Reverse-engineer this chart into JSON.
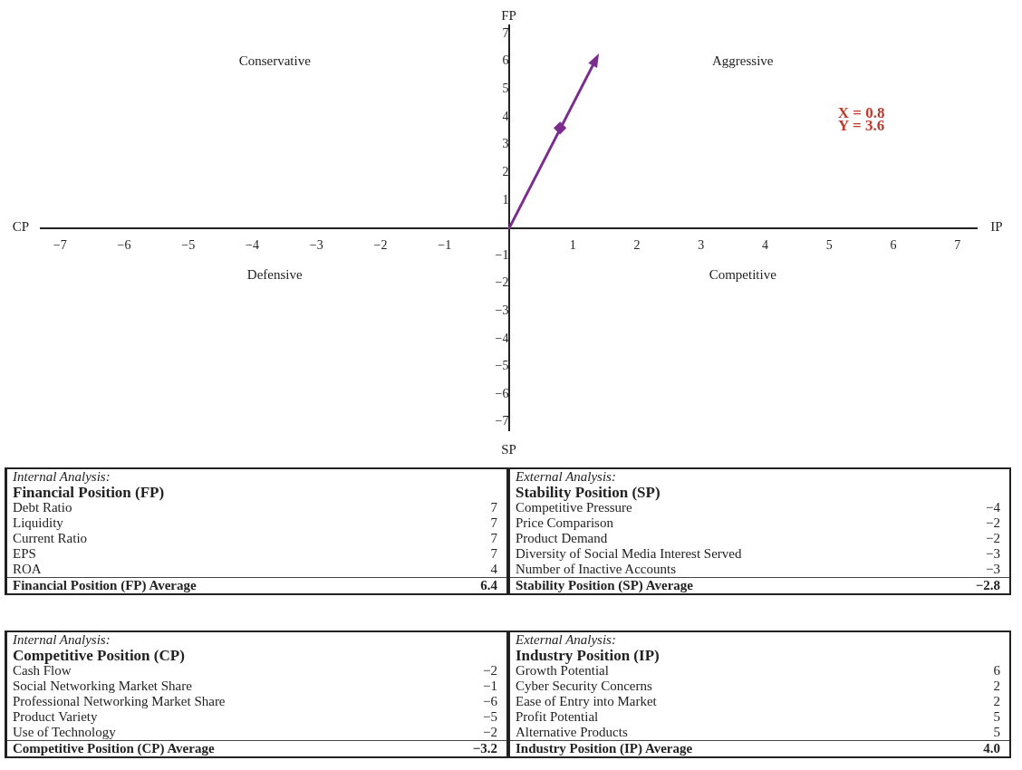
{
  "chart_data": [
    {
      "type": "scatter",
      "xlabel": "IP",
      "ylabel": "FP",
      "series": [
        {
          "color": "#7b2d8e",
          "x": [
            0.8
          ],
          "values": [
            3.6
          ],
          "marker": "diamond"
        }
      ],
      "xlim": [
        -7.3,
        7.3
      ],
      "xticks": [
        -7,
        -6,
        -5,
        -4,
        -3,
        -2,
        -1,
        1,
        2,
        3,
        4,
        5,
        6,
        7
      ],
      "ylim": [
        -7.3,
        7.3
      ],
      "yticks": [
        -7,
        -6,
        -5,
        -4,
        -3,
        -2,
        -1,
        1,
        2,
        3,
        4,
        5,
        6,
        7
      ],
      "grid": false,
      "legend": false,
      "annotations": [
        "Conservative",
        "Aggressive",
        "Defensive",
        "Competitive",
        "CP",
        "SP",
        "X = 0.8\nY = 3.6"
      ]
    },
    {
      "type": "other",
      "title": "Internal Analysis:",
      "subtitle": "Financial Position (FP)",
      "data_labels": true,
      "categories": [
        "Debt Ratio",
        "Liquidity",
        "Current Ratio",
        "EPS",
        "ROA",
        "Financial Position (FP) Average"
      ],
      "values": [
        7,
        7,
        7,
        7,
        4,
        6.4
      ]
    },
    {
      "type": "other",
      "title": "External Analysis:",
      "subtitle": "Stability Position (SP)",
      "data_labels": true,
      "categories": [
        "Competitive Pressure",
        "Price Comparison",
        "Product Demand",
        "Diversity of Social Media Interest Served",
        "Number of Inactive Accounts",
        "Stability Position (SP) Average"
      ],
      "values": [
        -4,
        -2,
        -2,
        -3,
        -3,
        -2.8
      ]
    },
    {
      "type": "other",
      "title": "Internal Analysis:",
      "subtitle": "Competitive Position (CP)",
      "data_labels": true,
      "categories": [
        "Cash Flow",
        "Social Networking Market Share",
        "Professional Networking Market Share",
        "Product Variety",
        "Use of Technology",
        "Competitive Position (CP) Average"
      ],
      "values": [
        -2,
        -1,
        -6,
        -5,
        -2,
        -3.2
      ]
    },
    {
      "type": "other",
      "title": "External Analysis:",
      "subtitle": "Industry Position (IP)",
      "categories": [
        "Growth Potential",
        "Cyber Security Concerns",
        "Ease of Entry into Market",
        "Profit Potential",
        "Alternative Products",
        "Industry Position (IP) Average"
      ],
      "value_labels": [
        "6",
        "2",
        "2",
        "5",
        "5",
        "4.0"
      ]
    }
  ]
}
